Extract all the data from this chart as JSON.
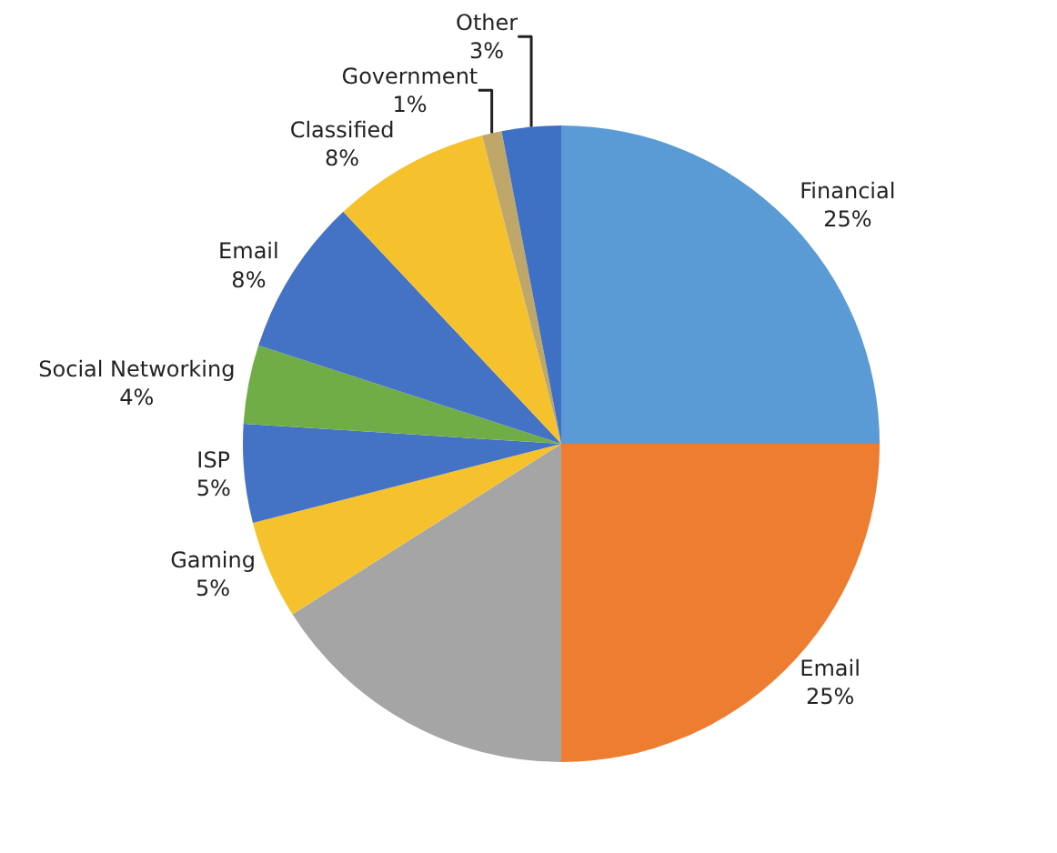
{
  "chart_data": {
    "type": "pie",
    "categories": [
      "Financial",
      "Email",
      null,
      "Gaming",
      "ISP",
      "Social Networking",
      "Email",
      "Classified",
      "Government",
      "Other"
    ],
    "values": [
      25,
      25,
      16,
      5,
      5,
      4,
      8,
      8,
      1,
      3
    ],
    "value_labels": [
      "25%",
      "25%",
      null,
      "5%",
      "5%",
      "4%",
      "8%",
      "8%",
      "1%",
      "3%"
    ],
    "colors": [
      "#5b9bd5",
      "#ed7d31",
      "#a5a5a5",
      "#f5c22e",
      "#4472c4",
      "#70ad47",
      "#4472c4",
      "#f5c22e",
      "#bfa76a",
      "#3e70c4"
    ],
    "legend": false
  }
}
